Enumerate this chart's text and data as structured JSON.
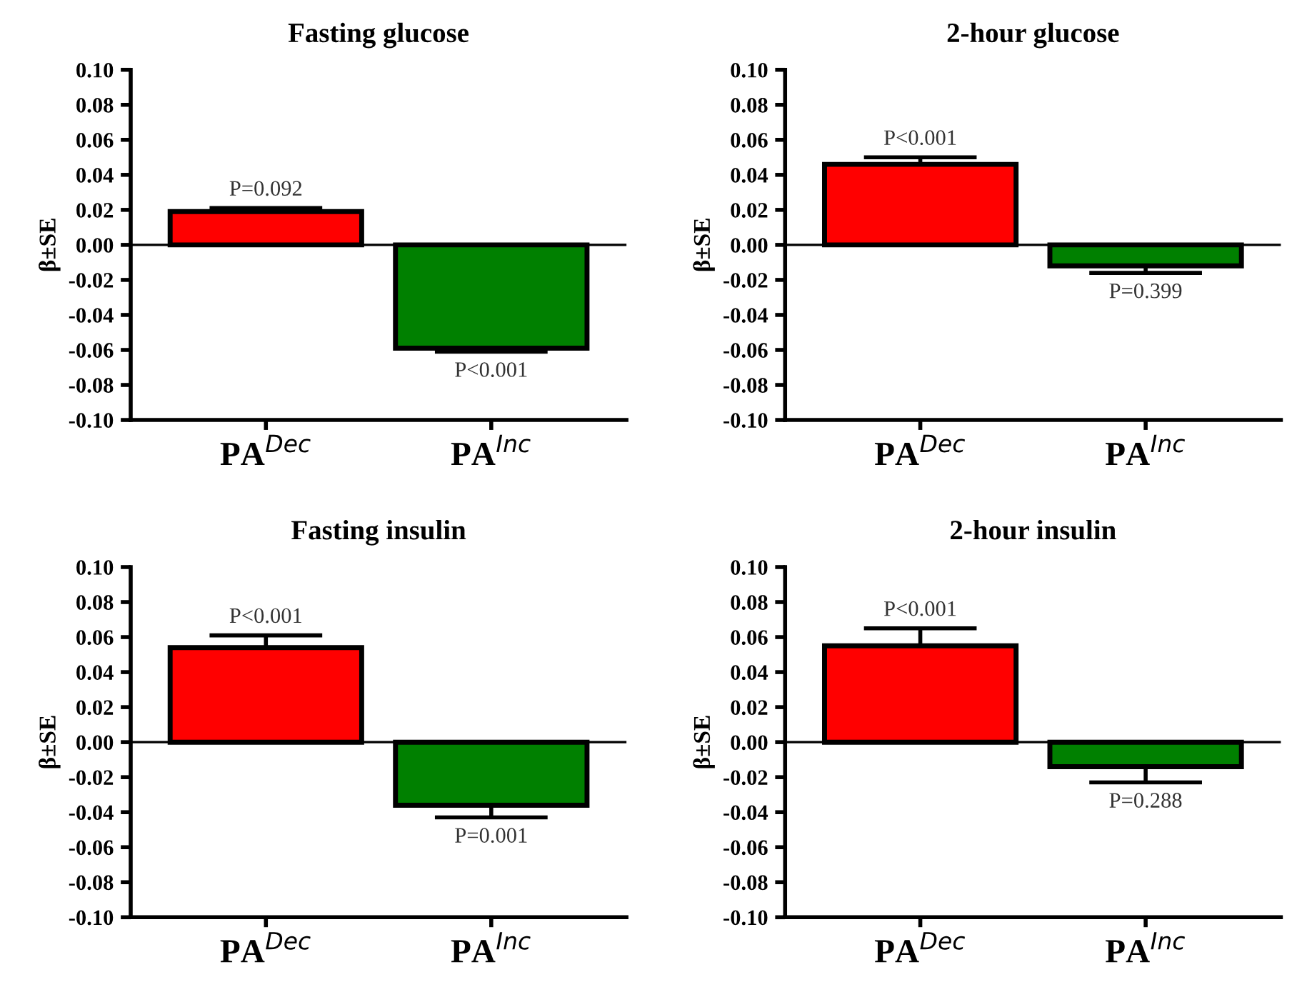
{
  "chart_data": [
    {
      "type": "bar",
      "title": "Fasting glucose",
      "ylabel": "β±SE",
      "categories": [
        "PA$^{Dec}$",
        "PA$^{Inc}$"
      ],
      "values": [
        0.019,
        -0.059
      ],
      "colors": [
        "#ff0000",
        "#008000"
      ],
      "errors": [
        [
          0.019,
          0.021
        ],
        [
          -0.061,
          -0.059
        ]
      ],
      "ylim": [
        -0.1,
        0.1
      ],
      "yticks": [
        {
          "value": -0.1,
          "label": "-0.10"
        },
        {
          "value": -0.08,
          "label": "-0.08"
        },
        {
          "value": -0.06,
          "label": "-0.06"
        },
        {
          "value": -0.04,
          "label": "-0.04"
        },
        {
          "value": -0.02,
          "label": "-0.02"
        },
        {
          "value": 0,
          "label": "0.00"
        },
        {
          "value": 0.02,
          "label": "0.02"
        },
        {
          "value": 0.04,
          "label": "0.04"
        },
        {
          "value": 0.06,
          "label": "0.06"
        },
        {
          "value": 0.08,
          "label": "0.08"
        },
        {
          "value": 0.1,
          "label": "0.10"
        }
      ],
      "annotations": [
        "P=0.092",
        "P<0.001"
      ]
    },
    {
      "type": "bar",
      "title": "2-hour glucose",
      "ylabel": "β±SE",
      "categories": [
        "PA$^{Dec}$",
        "PA$^{Inc}$"
      ],
      "values": [
        0.046,
        -0.012
      ],
      "colors": [
        "#ff0000",
        "#008000"
      ],
      "errors": [
        [
          0.046,
          0.05
        ],
        [
          -0.016,
          -0.012
        ]
      ],
      "ylim": [
        -0.1,
        0.1
      ],
      "yticks": [
        {
          "value": -0.1,
          "label": "-0.10"
        },
        {
          "value": -0.08,
          "label": "-0.08"
        },
        {
          "value": -0.06,
          "label": "-0.06"
        },
        {
          "value": -0.04,
          "label": "-0.04"
        },
        {
          "value": -0.02,
          "label": "-0.02"
        },
        {
          "value": 0,
          "label": "0.00"
        },
        {
          "value": 0.02,
          "label": "0.02"
        },
        {
          "value": 0.04,
          "label": "0.04"
        },
        {
          "value": 0.06,
          "label": "0.06"
        },
        {
          "value": 0.08,
          "label": "0.08"
        },
        {
          "value": 0.1,
          "label": "0.10"
        }
      ],
      "annotations": [
        "P<0.001",
        "P=0.399"
      ]
    },
    {
      "type": "bar",
      "title": "Fasting insulin",
      "ylabel": "β±SE",
      "categories": [
        "PA$^{Dec}$",
        "PA$^{Inc}$"
      ],
      "values": [
        0.054,
        -0.036
      ],
      "colors": [
        "#ff0000",
        "#008000"
      ],
      "errors": [
        [
          0.054,
          0.061
        ],
        [
          -0.043,
          -0.036
        ]
      ],
      "ylim": [
        -0.1,
        0.1
      ],
      "yticks": [
        {
          "value": -0.1,
          "label": "-0.10"
        },
        {
          "value": -0.08,
          "label": "-0.08"
        },
        {
          "value": -0.06,
          "label": "-0.06"
        },
        {
          "value": -0.04,
          "label": "-0.04"
        },
        {
          "value": -0.02,
          "label": "-0.02"
        },
        {
          "value": 0,
          "label": "0.00"
        },
        {
          "value": 0.02,
          "label": "0.02"
        },
        {
          "value": 0.04,
          "label": "0.04"
        },
        {
          "value": 0.06,
          "label": "0.06"
        },
        {
          "value": 0.08,
          "label": "0.08"
        },
        {
          "value": 0.1,
          "label": "0.10"
        }
      ],
      "annotations": [
        "P<0.001",
        "P=0.001"
      ]
    },
    {
      "type": "bar",
      "title": "2-hour insulin",
      "ylabel": "β±SE",
      "categories": [
        "PA$^{Dec}$",
        "PA$^{Inc}$"
      ],
      "values": [
        0.055,
        -0.014
      ],
      "colors": [
        "#ff0000",
        "#008000"
      ],
      "errors": [
        [
          0.055,
          0.065
        ],
        [
          -0.023,
          -0.014
        ]
      ],
      "ylim": [
        -0.1,
        0.1
      ],
      "yticks": [
        {
          "value": -0.1,
          "label": "-0.10"
        },
        {
          "value": -0.08,
          "label": "-0.08"
        },
        {
          "value": -0.06,
          "label": "-0.06"
        },
        {
          "value": -0.04,
          "label": "-0.04"
        },
        {
          "value": -0.02,
          "label": "-0.02"
        },
        {
          "value": 0,
          "label": "0.00"
        },
        {
          "value": 0.02,
          "label": "0.02"
        },
        {
          "value": 0.04,
          "label": "0.04"
        },
        {
          "value": 0.06,
          "label": "0.06"
        },
        {
          "value": 0.08,
          "label": "0.08"
        },
        {
          "value": 0.1,
          "label": "0.10"
        }
      ],
      "annotations": [
        "P<0.001",
        "P=0.288"
      ]
    }
  ]
}
